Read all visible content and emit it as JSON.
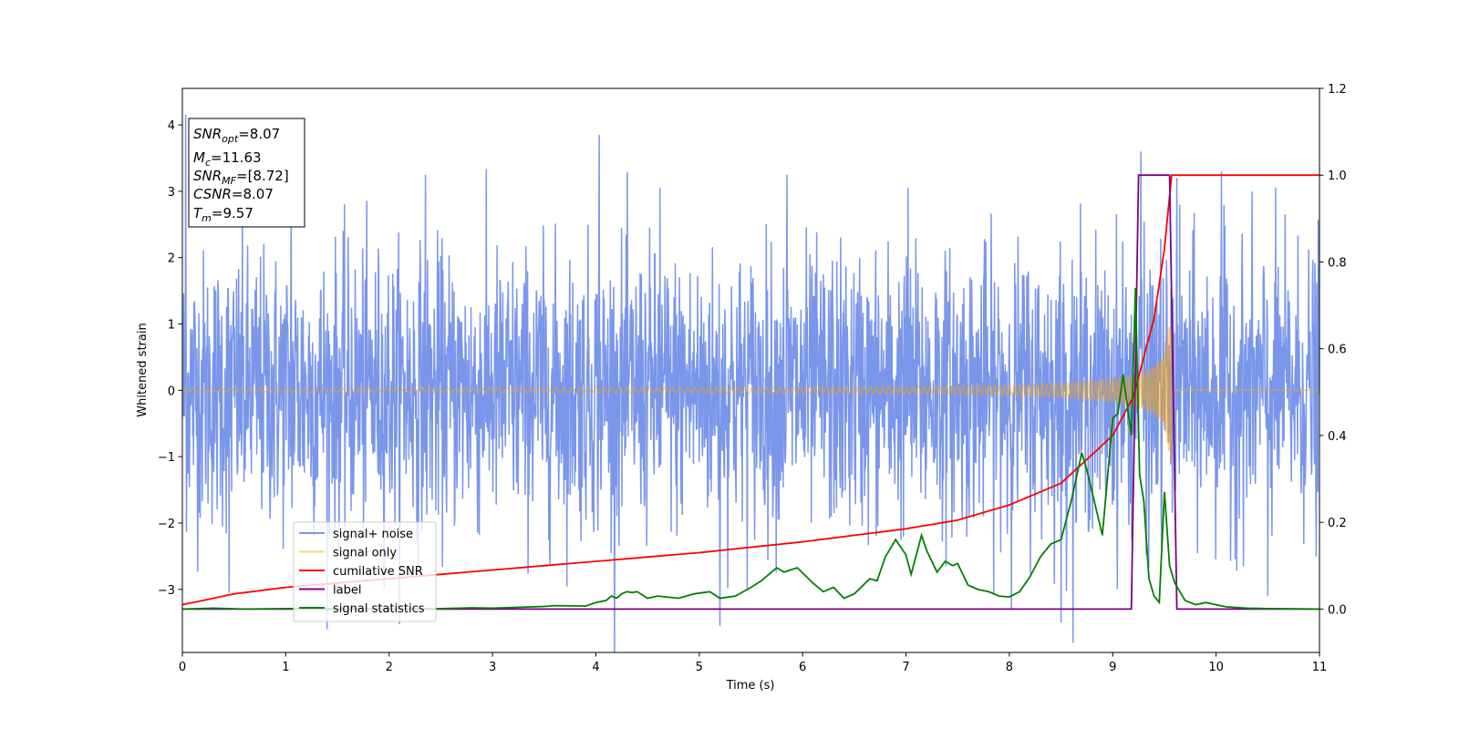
{
  "chart_data": {
    "type": "line",
    "title": "",
    "xlabel": "Time (s)",
    "ylabel": "Whitened strain",
    "y2label": "",
    "xlim": [
      0,
      11
    ],
    "ylim": [
      -3.95,
      4.55
    ],
    "y2lim": [
      -0.1,
      1.2
    ],
    "xticks": [
      0,
      1,
      2,
      3,
      4,
      5,
      6,
      7,
      8,
      9,
      10,
      11
    ],
    "yticks": [
      -3,
      -2,
      -1,
      0,
      1,
      2,
      3,
      4
    ],
    "y2ticks": [
      0.0,
      0.2,
      0.4,
      0.6,
      0.8,
      1.0,
      1.2
    ],
    "grid": false,
    "legend_position": "lower-left",
    "info_box": {
      "position": "top-left",
      "lines": [
        {
          "sym": "SNR",
          "sub": "opt",
          "value": "=8.07"
        },
        {
          "sym": "M",
          "sub": "c",
          "value": "=11.63"
        },
        {
          "sym": "SNR",
          "sub": "MF",
          "value": "=[8.72]"
        },
        {
          "sym": "CSNR",
          "sub": "",
          "value": "=8.07"
        },
        {
          "sym": "T",
          "sub": "m",
          "value": "=9.57"
        }
      ]
    },
    "series": [
      {
        "name": "signal+ noise",
        "axis": "left",
        "color": "#4169e1",
        "opacity": 0.7,
        "description": "whitened gaussian noise plus injected chirp, roughly +/-1.7 with spikes to about +/-3.5; peak 4.15 at t=0.03",
        "envelope": {
          "x": [
            0,
            11
          ],
          "y_lo": [
            -1.75,
            -1.75
          ],
          "y_hi": [
            1.75,
            1.75
          ]
        },
        "spikes": [
          {
            "x": 0.03,
            "y": 4.15
          },
          {
            "x": 0.45,
            "y": -3.05
          },
          {
            "x": 1.05,
            "y": 2.9
          },
          {
            "x": 2.35,
            "y": 3.25
          },
          {
            "x": 4.03,
            "y": 3.85
          },
          {
            "x": 4.62,
            "y": 3.05
          },
          {
            "x": 5.2,
            "y": -3.55
          },
          {
            "x": 5.85,
            "y": 3.25
          },
          {
            "x": 7.02,
            "y": 3.05
          },
          {
            "x": 8.5,
            "y": -3.5
          },
          {
            "x": 9.27,
            "y": 3.6
          },
          {
            "x": 9.62,
            "y": 3.2
          },
          {
            "x": 10.05,
            "y": 3.3
          },
          {
            "x": 10.5,
            "y": -3.1
          }
        ]
      },
      {
        "name": "signal only",
        "axis": "left",
        "color": "#ffa500",
        "opacity": 0.5,
        "description": "injected chirp waveform, amplitude grows toward merger at about 9.57 s",
        "amplitude_envelope": {
          "x": [
            0,
            2,
            4,
            6,
            7,
            8,
            8.5,
            9.0,
            9.2,
            9.4,
            9.5,
            9.57,
            9.6,
            11
          ],
          "a": [
            0.03,
            0.035,
            0.04,
            0.05,
            0.06,
            0.08,
            0.11,
            0.17,
            0.23,
            0.35,
            0.5,
            1.25,
            0.0,
            0.0
          ]
        },
        "merger_time": 9.57
      },
      {
        "name": "cumilative SNR",
        "axis": "right",
        "color": "#ff0000",
        "x": [
          0,
          0.5,
          1,
          2,
          3,
          4,
          5,
          6,
          7,
          7.5,
          8,
          8.5,
          9,
          9.2,
          9.4,
          9.5,
          9.57,
          11
        ],
        "y": [
          0.01,
          0.035,
          0.05,
          0.07,
          0.09,
          0.11,
          0.13,
          0.155,
          0.185,
          0.205,
          0.24,
          0.29,
          0.4,
          0.49,
          0.67,
          0.83,
          1.0,
          1.0
        ]
      },
      {
        "name": "label",
        "axis": "right",
        "color": "#800080",
        "x": [
          0,
          9.18,
          9.25,
          9.55,
          9.62,
          11
        ],
        "y": [
          0,
          0,
          1,
          1,
          0,
          0
        ]
      },
      {
        "name": "signal statistics",
        "axis": "right",
        "color": "#008000",
        "x": [
          0,
          0.3,
          0.6,
          1,
          2,
          2.5,
          2.8,
          3,
          3.5,
          3.6,
          3.9,
          4,
          4.1,
          4.15,
          4.2,
          4.25,
          4.3,
          4.35,
          4.4,
          4.5,
          4.6,
          4.8,
          4.95,
          5.1,
          5.2,
          5.35,
          5.5,
          5.6,
          5.75,
          5.82,
          5.88,
          5.95,
          6.1,
          6.2,
          6.3,
          6.4,
          6.5,
          6.65,
          6.72,
          6.8,
          6.9,
          7.0,
          7.05,
          7.15,
          7.2,
          7.3,
          7.38,
          7.45,
          7.5,
          7.6,
          7.7,
          7.8,
          7.9,
          8.0,
          8.1,
          8.2,
          8.3,
          8.4,
          8.5,
          8.6,
          8.7,
          8.75,
          8.8,
          8.9,
          9.0,
          9.05,
          9.1,
          9.18,
          9.22,
          9.26,
          9.3,
          9.35,
          9.4,
          9.45,
          9.5,
          9.55,
          9.6,
          9.7,
          9.8,
          9.9,
          10,
          10.1,
          10.3,
          10.5,
          11
        ],
        "y": [
          0.0,
          0.002,
          0.0,
          0.001,
          0.0,
          0.001,
          0.003,
          0.002,
          0.006,
          0.008,
          0.007,
          0.015,
          0.02,
          0.03,
          0.025,
          0.035,
          0.04,
          0.038,
          0.04,
          0.025,
          0.03,
          0.025,
          0.035,
          0.04,
          0.025,
          0.03,
          0.05,
          0.065,
          0.095,
          0.085,
          0.09,
          0.095,
          0.06,
          0.04,
          0.05,
          0.025,
          0.035,
          0.07,
          0.065,
          0.12,
          0.16,
          0.125,
          0.08,
          0.17,
          0.135,
          0.085,
          0.11,
          0.1,
          0.105,
          0.055,
          0.045,
          0.04,
          0.03,
          0.028,
          0.04,
          0.075,
          0.12,
          0.15,
          0.16,
          0.25,
          0.36,
          0.32,
          0.27,
          0.17,
          0.44,
          0.45,
          0.54,
          0.4,
          0.74,
          0.31,
          0.25,
          0.07,
          0.03,
          0.015,
          0.27,
          0.1,
          0.06,
          0.02,
          0.01,
          0.015,
          0.01,
          0.005,
          0.002,
          0.001,
          0.0
        ]
      }
    ]
  }
}
